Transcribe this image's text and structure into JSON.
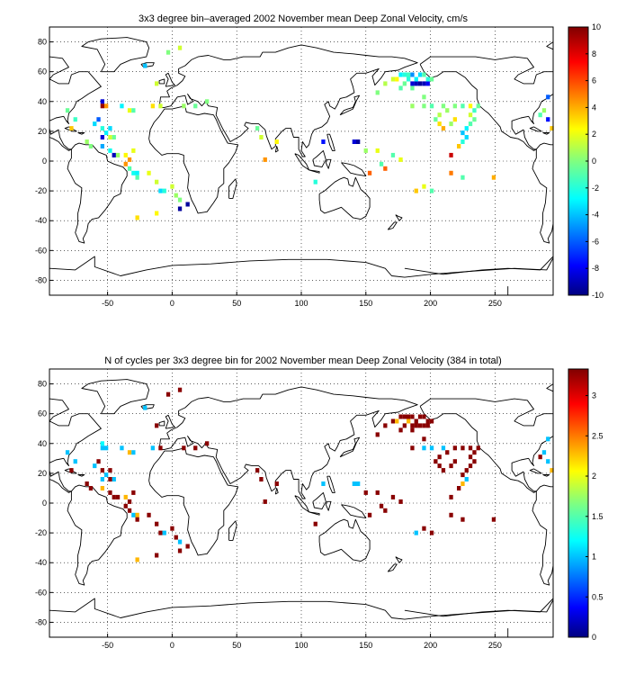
{
  "chart_data": [
    {
      "type": "heatmap",
      "title": "3x3 degree bin–averaged 2002 November mean Deep Zonal Velocity, cm/s",
      "xlim": [
        -95,
        295
      ],
      "ylim": [
        -90,
        90
      ],
      "xticks": [
        -50,
        0,
        50,
        100,
        150,
        200,
        250
      ],
      "yticks": [
        80,
        60,
        40,
        20,
        0,
        -20,
        -40,
        -60,
        -80
      ],
      "grid": true,
      "colorbar": {
        "colormap": "jet",
        "range": [
          -10,
          10
        ],
        "ticks": [
          10,
          8,
          6,
          4,
          2,
          0,
          -2,
          -4,
          -6,
          -8,
          -10
        ]
      },
      "bin_size_deg": 3,
      "cells": [
        [
          -54,
          40,
          -8.5
        ],
        [
          -54,
          37,
          9.5
        ],
        [
          -51,
          37,
          4.5
        ],
        [
          -39,
          37,
          -3
        ],
        [
          -33,
          34,
          2
        ],
        [
          -30,
          34,
          -1
        ],
        [
          -57,
          28,
          -6
        ],
        [
          -60,
          25,
          -3.5
        ],
        [
          -54,
          22,
          -2
        ],
        [
          -48,
          22,
          -3.5
        ],
        [
          -51,
          19,
          -3
        ],
        [
          -45,
          16,
          -0.5
        ],
        [
          -48,
          16,
          1.5
        ],
        [
          -54,
          16,
          -8.5
        ],
        [
          -54,
          10,
          -4.5
        ],
        [
          -63,
          10,
          0
        ],
        [
          -66,
          13,
          0.5
        ],
        [
          -48,
          7,
          -2.5
        ],
        [
          -45,
          4,
          -9
        ],
        [
          -42,
          4,
          0.5
        ],
        [
          -36,
          4,
          2.5
        ],
        [
          -30,
          7,
          2
        ],
        [
          -33,
          1,
          4.5
        ],
        [
          -36,
          -2,
          4.5
        ],
        [
          -33,
          -5,
          -1
        ],
        [
          -30,
          -8,
          -2.5
        ],
        [
          -27,
          -8,
          -3
        ],
        [
          -27,
          -11,
          -1
        ],
        [
          -18,
          -8,
          2
        ],
        [
          -12,
          -14,
          1.5
        ],
        [
          -9,
          -20,
          -3.5
        ],
        [
          0,
          -17,
          1.5
        ],
        [
          -6,
          -20,
          -2
        ],
        [
          3,
          -23,
          0.5
        ],
        [
          6,
          -26,
          0
        ],
        [
          12,
          -29,
          -9.5
        ],
        [
          6,
          -32,
          -9.5
        ],
        [
          -27,
          -38,
          3
        ],
        [
          -12,
          -35,
          2.5
        ],
        [
          -12,
          52,
          1.5
        ],
        [
          -3,
          73,
          0
        ],
        [
          6,
          76,
          1.5
        ],
        [
          -21,
          64,
          -4
        ],
        [
          -15,
          37,
          3
        ],
        [
          -9,
          37,
          1.5
        ],
        [
          9,
          37,
          0.5
        ],
        [
          18,
          37,
          -0.5
        ],
        [
          27,
          40,
          0
        ],
        [
          -81,
          34,
          -0.5
        ],
        [
          -75,
          28,
          -1.5
        ],
        [
          -78,
          22,
          3.5
        ],
        [
          66,
          22,
          -0.5
        ],
        [
          69,
          16,
          1.5
        ],
        [
          81,
          13,
          2.5
        ],
        [
          72,
          1,
          4.5
        ],
        [
          117,
          13,
          -7.5
        ],
        [
          141,
          13,
          -8.5
        ],
        [
          144,
          13,
          -9.5
        ],
        [
          150,
          7,
          0.5
        ],
        [
          159,
          7,
          2
        ],
        [
          171,
          4,
          -1
        ],
        [
          162,
          -2,
          -1
        ],
        [
          153,
          -8,
          5.5
        ],
        [
          165,
          -5,
          5.5
        ],
        [
          177,
          1,
          2
        ],
        [
          111,
          -14,
          -2
        ],
        [
          189,
          -20,
          3.5
        ],
        [
          195,
          -17,
          2
        ],
        [
          201,
          -20,
          -1
        ],
        [
          216,
          -8,
          5
        ],
        [
          225,
          -11,
          -1
        ],
        [
          249,
          -11,
          4
        ],
        [
          216,
          4,
          8.5
        ],
        [
          222,
          10,
          3.5
        ],
        [
          225,
          13,
          -2
        ],
        [
          228,
          16,
          -3.5
        ],
        [
          225,
          19,
          -4
        ],
        [
          228,
          22,
          -3
        ],
        [
          231,
          25,
          -1
        ],
        [
          234,
          28,
          -0.5
        ],
        [
          231,
          31,
          1.5
        ],
        [
          237,
          37,
          -0.5
        ],
        [
          234,
          34,
          -1.5
        ],
        [
          207,
          25,
          3
        ],
        [
          210,
          22,
          4
        ],
        [
          216,
          25,
          0.5
        ],
        [
          219,
          28,
          3
        ],
        [
          204,
          28,
          -0.5
        ],
        [
          207,
          31,
          1
        ],
        [
          213,
          34,
          0.5
        ],
        [
          219,
          37,
          0
        ],
        [
          225,
          37,
          -1
        ],
        [
          231,
          37,
          2.5
        ],
        [
          210,
          37,
          0
        ],
        [
          201,
          37,
          -1
        ],
        [
          195,
          37,
          0
        ],
        [
          186,
          37,
          0.5
        ],
        [
          195,
          43,
          0
        ],
        [
          186,
          49,
          -0.5
        ],
        [
          177,
          49,
          -1
        ],
        [
          165,
          52,
          1
        ],
        [
          159,
          46,
          0
        ],
        [
          180,
          52,
          -0.5
        ],
        [
          183,
          55,
          -2
        ],
        [
          186,
          52,
          -8.5
        ],
        [
          189,
          52,
          -9
        ],
        [
          192,
          52,
          -9.5
        ],
        [
          195,
          52,
          -9
        ],
        [
          198,
          52,
          -8
        ],
        [
          201,
          55,
          -0.5
        ],
        [
          177,
          58,
          -3
        ],
        [
          180,
          58,
          -2
        ],
        [
          183,
          58,
          -1.5
        ],
        [
          186,
          58,
          -5
        ],
        [
          189,
          55,
          -3
        ],
        [
          171,
          55,
          1.5
        ],
        [
          174,
          55,
          2.5
        ],
        [
          192,
          58,
          -3.5
        ],
        [
          195,
          58,
          -1
        ],
        [
          198,
          55,
          -2
        ],
        [
          291,
          43,
          -6
        ],
        [
          291,
          28,
          -7.5
        ],
        [
          294,
          22,
          3.5
        ],
        [
          285,
          31,
          -1
        ],
        [
          288,
          34,
          0.5
        ]
      ]
    },
    {
      "type": "heatmap",
      "title": "N of cycles per 3x3 degree bin for 2002 November mean Deep Zonal Velocity (384 in total)",
      "xlim": [
        -95,
        295
      ],
      "ylim": [
        -90,
        90
      ],
      "xticks": [
        -50,
        0,
        50,
        100,
        150,
        200,
        250
      ],
      "yticks": [
        80,
        60,
        40,
        20,
        0,
        -20,
        -40,
        -60,
        -80
      ],
      "grid": true,
      "colorbar": {
        "colormap": "jet",
        "range": [
          0,
          3.33
        ],
        "ticks": [
          3,
          2.5,
          2,
          1.5,
          1,
          0.5,
          0
        ]
      },
      "bin_size_deg": 3,
      "cells": [
        [
          -54,
          40,
          1.2
        ],
        [
          -54,
          37,
          1.0
        ],
        [
          -51,
          37,
          1.0
        ],
        [
          -39,
          37,
          1.0
        ],
        [
          -33,
          34,
          2.3
        ],
        [
          -30,
          34,
          1.0
        ],
        [
          -57,
          28,
          3.3
        ],
        [
          -60,
          25,
          1.0
        ],
        [
          -54,
          22,
          3.3
        ],
        [
          -48,
          22,
          3.3
        ],
        [
          -51,
          19,
          1.0
        ],
        [
          -45,
          16,
          1.0
        ],
        [
          -48,
          16,
          3.3
        ],
        [
          -54,
          16,
          1.0
        ],
        [
          -54,
          10,
          2.3
        ],
        [
          -63,
          10,
          3.3
        ],
        [
          -66,
          13,
          3.3
        ],
        [
          -48,
          7,
          3.3
        ],
        [
          -45,
          4,
          3.3
        ],
        [
          -42,
          4,
          3.3
        ],
        [
          -36,
          4,
          2.3
        ],
        [
          -30,
          7,
          3.3
        ],
        [
          -33,
          1,
          3.3
        ],
        [
          -36,
          -2,
          3.3
        ],
        [
          -33,
          -5,
          3.3
        ],
        [
          -30,
          -8,
          1.0
        ],
        [
          -27,
          -8,
          2.3
        ],
        [
          -27,
          -11,
          3.3
        ],
        [
          -18,
          -8,
          3.3
        ],
        [
          -12,
          -14,
          3.3
        ],
        [
          -9,
          -20,
          3.3
        ],
        [
          0,
          -17,
          3.3
        ],
        [
          -6,
          -20,
          1.0
        ],
        [
          3,
          -23,
          3.3
        ],
        [
          6,
          -26,
          1.0
        ],
        [
          12,
          -29,
          3.3
        ],
        [
          6,
          -32,
          3.3
        ],
        [
          -27,
          -38,
          2.3
        ],
        [
          -12,
          -35,
          3.3
        ],
        [
          -12,
          52,
          3.3
        ],
        [
          -3,
          73,
          3.3
        ],
        [
          6,
          76,
          3.3
        ],
        [
          -21,
          64,
          1.0
        ],
        [
          -15,
          37,
          1.0
        ],
        [
          -9,
          37,
          3.3
        ],
        [
          9,
          37,
          3.3
        ],
        [
          18,
          37,
          3.3
        ],
        [
          27,
          40,
          3.3
        ],
        [
          -81,
          34,
          1.0
        ],
        [
          -75,
          28,
          1.0
        ],
        [
          -78,
          22,
          3.3
        ],
        [
          66,
          22,
          3.3
        ],
        [
          69,
          16,
          3.3
        ],
        [
          81,
          13,
          3.3
        ],
        [
          72,
          1,
          3.3
        ],
        [
          117,
          13,
          1.0
        ],
        [
          141,
          13,
          1.0
        ],
        [
          144,
          13,
          1.0
        ],
        [
          150,
          7,
          3.3
        ],
        [
          159,
          7,
          3.3
        ],
        [
          171,
          4,
          3.3
        ],
        [
          162,
          -2,
          3.3
        ],
        [
          153,
          -8,
          3.3
        ],
        [
          165,
          -5,
          3.3
        ],
        [
          177,
          1,
          3.3
        ],
        [
          111,
          -14,
          3.3
        ],
        [
          189,
          -20,
          1.0
        ],
        [
          195,
          -17,
          3.3
        ],
        [
          201,
          -20,
          3.3
        ],
        [
          216,
          -8,
          3.3
        ],
        [
          225,
          -11,
          3.3
        ],
        [
          249,
          -11,
          3.3
        ],
        [
          216,
          4,
          3.3
        ],
        [
          222,
          10,
          3.3
        ],
        [
          225,
          13,
          2.3
        ],
        [
          228,
          16,
          1.0
        ],
        [
          225,
          19,
          3.3
        ],
        [
          228,
          22,
          3.3
        ],
        [
          231,
          25,
          3.3
        ],
        [
          234,
          28,
          3.3
        ],
        [
          231,
          31,
          3.3
        ],
        [
          237,
          37,
          3.3
        ],
        [
          234,
          34,
          3.3
        ],
        [
          207,
          25,
          3.3
        ],
        [
          210,
          22,
          3.3
        ],
        [
          216,
          25,
          3.3
        ],
        [
          219,
          28,
          3.3
        ],
        [
          204,
          28,
          3.3
        ],
        [
          207,
          31,
          3.3
        ],
        [
          213,
          34,
          3.3
        ],
        [
          219,
          37,
          3.3
        ],
        [
          225,
          37,
          3.3
        ],
        [
          231,
          37,
          3.3
        ],
        [
          210,
          37,
          1.0
        ],
        [
          201,
          37,
          1.0
        ],
        [
          195,
          37,
          1.0
        ],
        [
          186,
          37,
          3.3
        ],
        [
          195,
          43,
          3.3
        ],
        [
          186,
          49,
          3.3
        ],
        [
          177,
          49,
          3.3
        ],
        [
          165,
          52,
          3.3
        ],
        [
          159,
          46,
          3.3
        ],
        [
          180,
          52,
          3.3
        ],
        [
          183,
          55,
          2.3
        ],
        [
          186,
          52,
          3.3
        ],
        [
          189,
          52,
          3.3
        ],
        [
          192,
          52,
          3.3
        ],
        [
          195,
          52,
          3.3
        ],
        [
          198,
          52,
          3.3
        ],
        [
          201,
          55,
          3.3
        ],
        [
          177,
          58,
          3.3
        ],
        [
          180,
          58,
          3.3
        ],
        [
          183,
          58,
          3.3
        ],
        [
          186,
          58,
          3.3
        ],
        [
          189,
          55,
          3.3
        ],
        [
          171,
          55,
          3.3
        ],
        [
          174,
          55,
          2.3
        ],
        [
          192,
          58,
          3.3
        ],
        [
          195,
          58,
          3.3
        ],
        [
          198,
          55,
          3.3
        ],
        [
          291,
          43,
          1.0
        ],
        [
          291,
          28,
          1.0
        ],
        [
          294,
          22,
          2.3
        ],
        [
          285,
          31,
          3.3
        ],
        [
          288,
          34,
          1.0
        ]
      ]
    }
  ]
}
